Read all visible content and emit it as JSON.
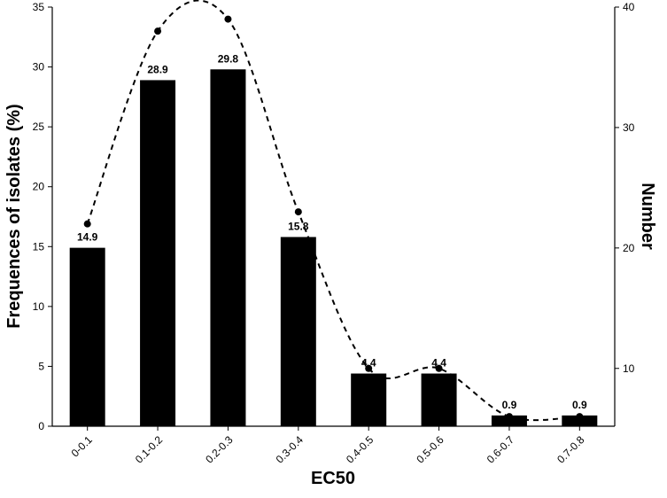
{
  "chart_data": {
    "type": "bar",
    "xlabel": "EC50",
    "ylabel": "Frequences of isolates (%)",
    "y2label": "Number",
    "categories": [
      "0-0.1",
      "0.1-0.2",
      "0.2-0.3",
      "0.3-0.4",
      "0.4-0.5",
      "0.5-0.6",
      "0.6-0.7",
      "0.7-0.8"
    ],
    "series": [
      {
        "type": "bar",
        "axis": "left",
        "color": "#000000",
        "values": [
          14.9,
          28.9,
          29.8,
          15.8,
          4.4,
          4.4,
          0.9,
          0.9
        ],
        "data_labels": [
          "14.9",
          "28.9",
          "29.8",
          "15.8",
          "4.4",
          "4.4",
          "0.9",
          "0.9"
        ]
      },
      {
        "type": "line",
        "axis": "right",
        "style": "dashed-smooth-with-points",
        "color": "#000000",
        "values": [
          22,
          38,
          39,
          23,
          10,
          10,
          6,
          6
        ]
      }
    ],
    "ylim": [
      0,
      35
    ],
    "yticks": [
      "0",
      "5",
      "10",
      "15",
      "20",
      "25",
      "30",
      "35"
    ],
    "y2lim": [
      5.2,
      40
    ],
    "y2ticks": [
      "10",
      "20",
      "30",
      "40"
    ],
    "grid": false,
    "legend": "none"
  }
}
